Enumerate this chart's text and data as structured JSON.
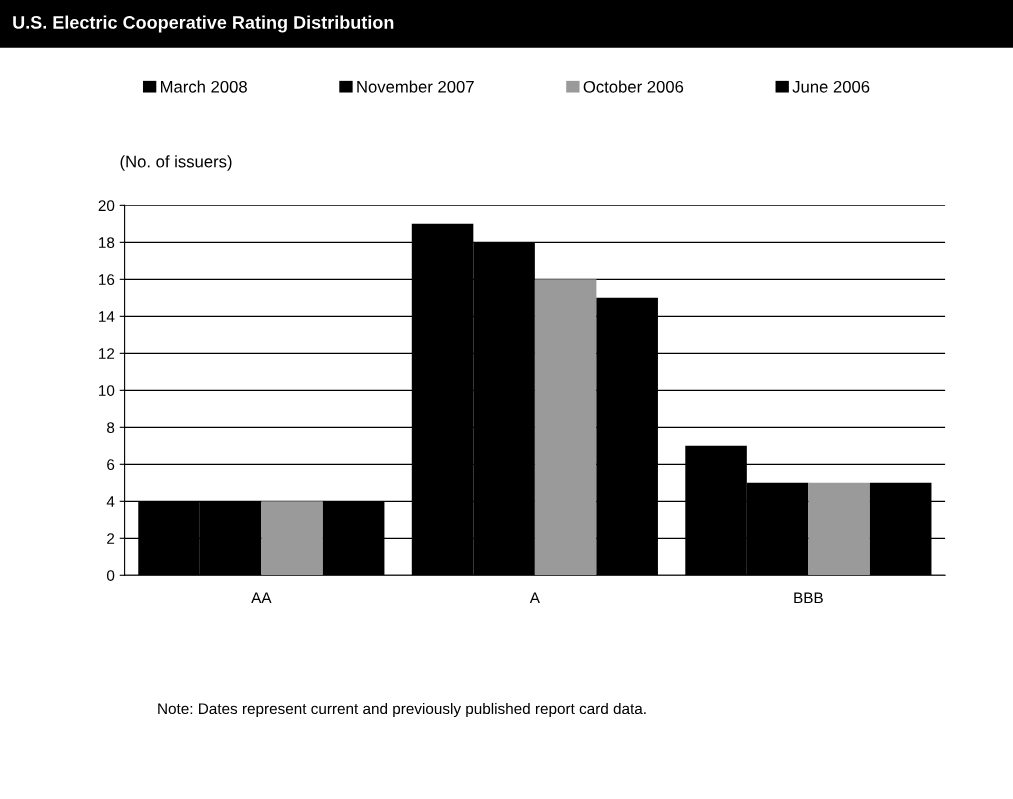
{
  "chart_data": {
    "type": "bar",
    "title": "U.S. Electric Cooperative Rating Distribution",
    "ylabel": "(No. of issuers)",
    "categories": [
      "AA",
      "A",
      "BBB"
    ],
    "series": [
      {
        "name": "March 2008",
        "color": "#000000",
        "values": [
          4,
          19,
          7
        ]
      },
      {
        "name": "November 2007",
        "color": "#000000",
        "values": [
          4,
          18,
          5
        ]
      },
      {
        "name": "October 2006",
        "color": "#9a9a9a",
        "values": [
          4,
          16,
          5
        ]
      },
      {
        "name": "June 2006",
        "color": "#000000",
        "values": [
          4,
          15,
          5
        ]
      }
    ],
    "ylim": [
      0,
      20
    ],
    "yticks": [
      0,
      2,
      4,
      6,
      8,
      10,
      12,
      14,
      16,
      18,
      20
    ],
    "grid": "y",
    "legend": "top",
    "annotations": [
      "Note: Dates represent current and previously published report card data."
    ]
  }
}
